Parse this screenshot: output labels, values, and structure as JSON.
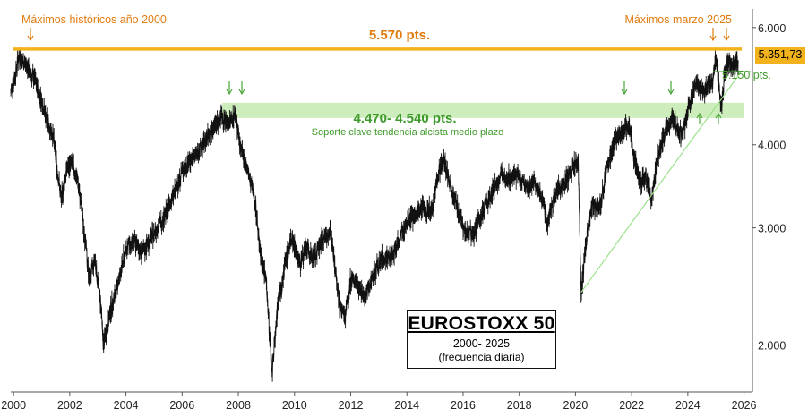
{
  "chart_data": {
    "type": "line",
    "title": "EUROSTOXX 50",
    "subtitle": "2000- 2025",
    "subtitle2": "(frecuencia diaria)",
    "x_ticks": [
      "2000",
      "2002",
      "2004",
      "2006",
      "2008",
      "2010",
      "2012",
      "2014",
      "2016",
      "2018",
      "2020",
      "2022",
      "2024",
      "2026"
    ],
    "y_ticks": [
      "2.000",
      "3.000",
      "4.000",
      "6.000"
    ],
    "y_scale": "log",
    "ylim": [
      1700,
      6400
    ],
    "xlim": [
      1999.9,
      2026.3
    ],
    "current_price_label": "5.351,73",
    "series": [
      {
        "x": [
          1999.9,
          2000.0,
          2000.2,
          2000.4,
          2000.6,
          2000.8,
          2001.0,
          2001.2,
          2001.4,
          2001.7,
          2001.9,
          2002.1,
          2002.3,
          2002.5,
          2002.7,
          2002.9,
          2003.1,
          2003.2,
          2003.5,
          2003.8,
          2004.0,
          2004.3,
          2004.6,
          2004.9,
          2005.2,
          2005.5,
          2005.8,
          2006.0,
          2006.3,
          2006.6,
          2006.9,
          2007.2,
          2007.4,
          2007.6,
          2007.9,
          2008.1,
          2008.3,
          2008.6,
          2008.8,
          2009.0,
          2009.2,
          2009.4,
          2009.7,
          2009.9,
          2010.2,
          2010.4,
          2010.7,
          2011.0,
          2011.3,
          2011.6,
          2011.8,
          2012.0,
          2012.2,
          2012.5,
          2012.8,
          2013.1,
          2013.4,
          2013.7,
          2014.0,
          2014.3,
          2014.6,
          2014.9,
          2015.1,
          2015.3,
          2015.5,
          2015.8,
          2016.1,
          2016.4,
          2016.8,
          2017.1,
          2017.4,
          2017.7,
          2018.0,
          2018.2,
          2018.5,
          2018.8,
          2019.0,
          2019.3,
          2019.6,
          2019.9,
          2020.1,
          2020.2,
          2020.4,
          2020.6,
          2020.9,
          2021.1,
          2021.4,
          2021.7,
          2021.9,
          2022.1,
          2022.3,
          2022.5,
          2022.7,
          2022.9,
          2023.2,
          2023.5,
          2023.8,
          2024.0,
          2024.3,
          2024.6,
          2024.9,
          2025.0,
          2025.2,
          2025.3,
          2025.4,
          2025.6,
          2025.8
        ],
        "values": [
          4800,
          4950,
          5450,
          5300,
          5150,
          4950,
          4650,
          4350,
          4150,
          3300,
          3700,
          3750,
          3500,
          3000,
          2500,
          2700,
          2300,
          2000,
          2300,
          2550,
          2800,
          2850,
          2750,
          2900,
          3050,
          3200,
          3450,
          3650,
          3800,
          3900,
          4100,
          4300,
          4450,
          4300,
          4450,
          3900,
          3700,
          3300,
          2700,
          2500,
          1810,
          2300,
          2700,
          2900,
          2650,
          2800,
          2700,
          2900,
          2950,
          2300,
          2200,
          2500,
          2500,
          2350,
          2550,
          2700,
          2700,
          2850,
          3050,
          3150,
          3200,
          3200,
          3600,
          3800,
          3550,
          3200,
          2950,
          2950,
          3250,
          3450,
          3600,
          3550,
          3600,
          3450,
          3500,
          3350,
          3050,
          3400,
          3500,
          3700,
          3750,
          2400,
          2900,
          3250,
          3250,
          3650,
          4050,
          4200,
          4300,
          3800,
          3500,
          3600,
          3300,
          3800,
          4200,
          4350,
          4100,
          4500,
          4950,
          4800,
          5000,
          5450,
          4540,
          5100,
          5300,
          5250,
          5352
        ]
      }
    ],
    "annotations": {
      "max_2000_label": "Máximos históricos año 2000",
      "max_2025_label": "Máximos marzo 2025",
      "resistance_label": "5.570 pts.",
      "resistance_value": 5570,
      "support_label": "4.470- 4.540 pts.",
      "support_low": 4470,
      "support_high": 4540,
      "support_desc": "Soporte clave tendencia alcista medio plazo",
      "level_5150_label": "5.150 pts.",
      "trendline_from": [
        2020.2,
        2400
      ],
      "trendline_to": [
        2025.9,
        5150
      ]
    },
    "colors": {
      "resistance": "#f2b21c",
      "resistance_text": "#e07b0f",
      "support_band": "#cdeebc",
      "support_text": "#3e9a2a",
      "trendline": "#9be08a",
      "price": "#111111",
      "arrow_orange": "#e07b0f",
      "arrow_green": "#4aa63a"
    }
  }
}
